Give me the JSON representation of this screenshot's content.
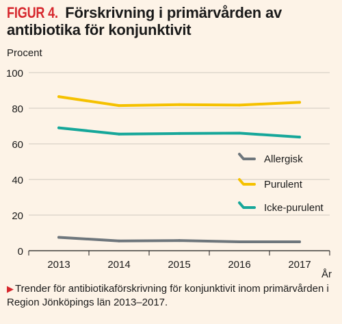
{
  "title": {
    "figure_label": "FIGUR 4.",
    "text": "Förskrivning i primärvården av antibiotika för konjunktivit"
  },
  "caption": "Trender för antibiotikaförskrivning för konjunktivit inom primärvården i Region Jönköpings län 2013–2017.",
  "colors": {
    "background": "#fdf3e7",
    "accent": "#d6262c",
    "allergisk": "#6e767c",
    "purulent": "#f5c100",
    "icke_purulent": "#16a79a"
  },
  "chart_data": {
    "type": "line",
    "ylabel": "Procent",
    "xlabel": "År",
    "x": [
      "2013",
      "2014",
      "2015",
      "2016",
      "2017"
    ],
    "ylim": [
      0,
      100
    ],
    "yticks": [
      0,
      20,
      40,
      60,
      80,
      100
    ],
    "grid": true,
    "legend_position": "right",
    "series": [
      {
        "name": "Allergisk",
        "color": "#6e767c",
        "values": [
          7.5,
          5.5,
          5.7,
          5.0,
          5.0
        ]
      },
      {
        "name": "Purulent",
        "color": "#f5c100",
        "values": [
          86.5,
          81.5,
          82.0,
          81.8,
          83.3
        ]
      },
      {
        "name": "Icke-purulent",
        "color": "#16a79a",
        "values": [
          69.0,
          65.5,
          65.8,
          66.0,
          63.8
        ]
      }
    ]
  }
}
